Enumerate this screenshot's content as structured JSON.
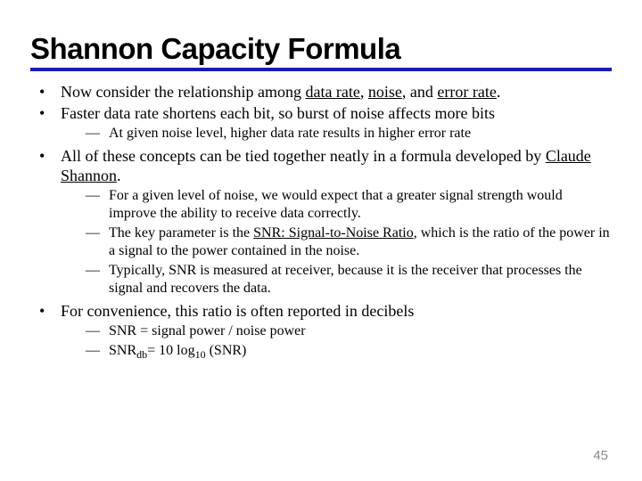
{
  "title": "Shannon Capacity Formula",
  "title_fontsize": 33,
  "title_color": "#000000",
  "underline_color": "#1a1aae",
  "underline_width": 4,
  "body_fontsize_l1": 18,
  "body_fontsize_l2": 16,
  "line_height_l1": 22,
  "line_height_l2": 20,
  "page_number": "45",
  "page_number_color": "#8a8a8a",
  "page_number_fontsize": 15,
  "bullets": [
    {
      "text_parts": [
        {
          "t": "Now consider the relationship among "
        },
        {
          "t": "data rate",
          "u": true
        },
        {
          "t": ", "
        },
        {
          "t": "noise",
          "u": true
        },
        {
          "t": ", and "
        },
        {
          "t": "error rate",
          "u": true
        },
        {
          "t": "."
        }
      ],
      "sub": []
    },
    {
      "text_parts": [
        {
          "t": "Faster data rate shortens each bit, so burst of noise affects more bits"
        }
      ],
      "sub": [
        {
          "text_parts": [
            {
              "t": "At given noise level, higher data rate results in higher error rate"
            }
          ]
        }
      ]
    },
    {
      "text_parts": [
        {
          "t": "All of these concepts can be tied together neatly in a formula developed by "
        },
        {
          "t": "Claude Shannon",
          "u": true
        },
        {
          "t": "."
        }
      ],
      "sub": [
        {
          "text_parts": [
            {
              "t": "For a given level of noise, we would expect that a greater signal strength would improve the ability to receive data correctly."
            }
          ]
        },
        {
          "text_parts": [
            {
              "t": "The key parameter is the "
            },
            {
              "t": "SNR: Signal-to-Noise Ratio",
              "u": true
            },
            {
              "t": ", which is the ratio of the power in a signal to the power contained in the noise."
            }
          ]
        },
        {
          "text_parts": [
            {
              "t": "Typically, SNR is measured at receiver, because it is the receiver that processes the signal and recovers the data."
            }
          ]
        }
      ]
    },
    {
      "text_parts": [
        {
          "t": "For convenience, this ratio is often reported in decibels"
        }
      ],
      "sub": [
        {
          "text_parts": [
            {
              "t": "SNR = signal power / noise power"
            }
          ]
        },
        {
          "text_parts": [
            {
              "t": "SNR"
            },
            {
              "t": "db",
              "sub": true
            },
            {
              "t": "= 10 log"
            },
            {
              "t": "10",
              "sub": true
            },
            {
              "t": " (SNR)"
            }
          ]
        }
      ]
    }
  ]
}
